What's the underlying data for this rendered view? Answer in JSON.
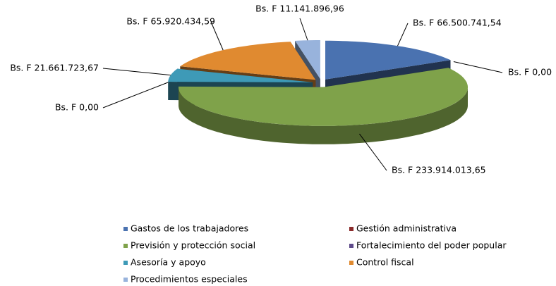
{
  "chart_data": {
    "type": "pie",
    "categories": [
      "Gastos de los trabajadores",
      "Gestión administrativa",
      "Previsión y protección social",
      "Fortalecimiento del poder popular",
      "Asesoría y apoyo",
      "Control fiscal",
      "Procedimientos especiales"
    ],
    "values": [
      66500741.54,
      0,
      233914013.65,
      0,
      21661723.67,
      65920434.59,
      11141896.96
    ],
    "value_labels": [
      "Bs. F 66.500.741,54",
      "Bs. F 0,00",
      "Bs. F 233.914.013,65",
      "Bs. F 0,00",
      "Bs. F 21.661.723,67",
      "Bs. F 65.920.434,59",
      "Bs. F 11.141.896,96"
    ],
    "colors": [
      "#4a72b0",
      "#8b2b2b",
      "#7fa24a",
      "#5d4a8a",
      "#3e9ab7",
      "#e08a30",
      "#98b3dc"
    ],
    "legend": "bottom"
  }
}
